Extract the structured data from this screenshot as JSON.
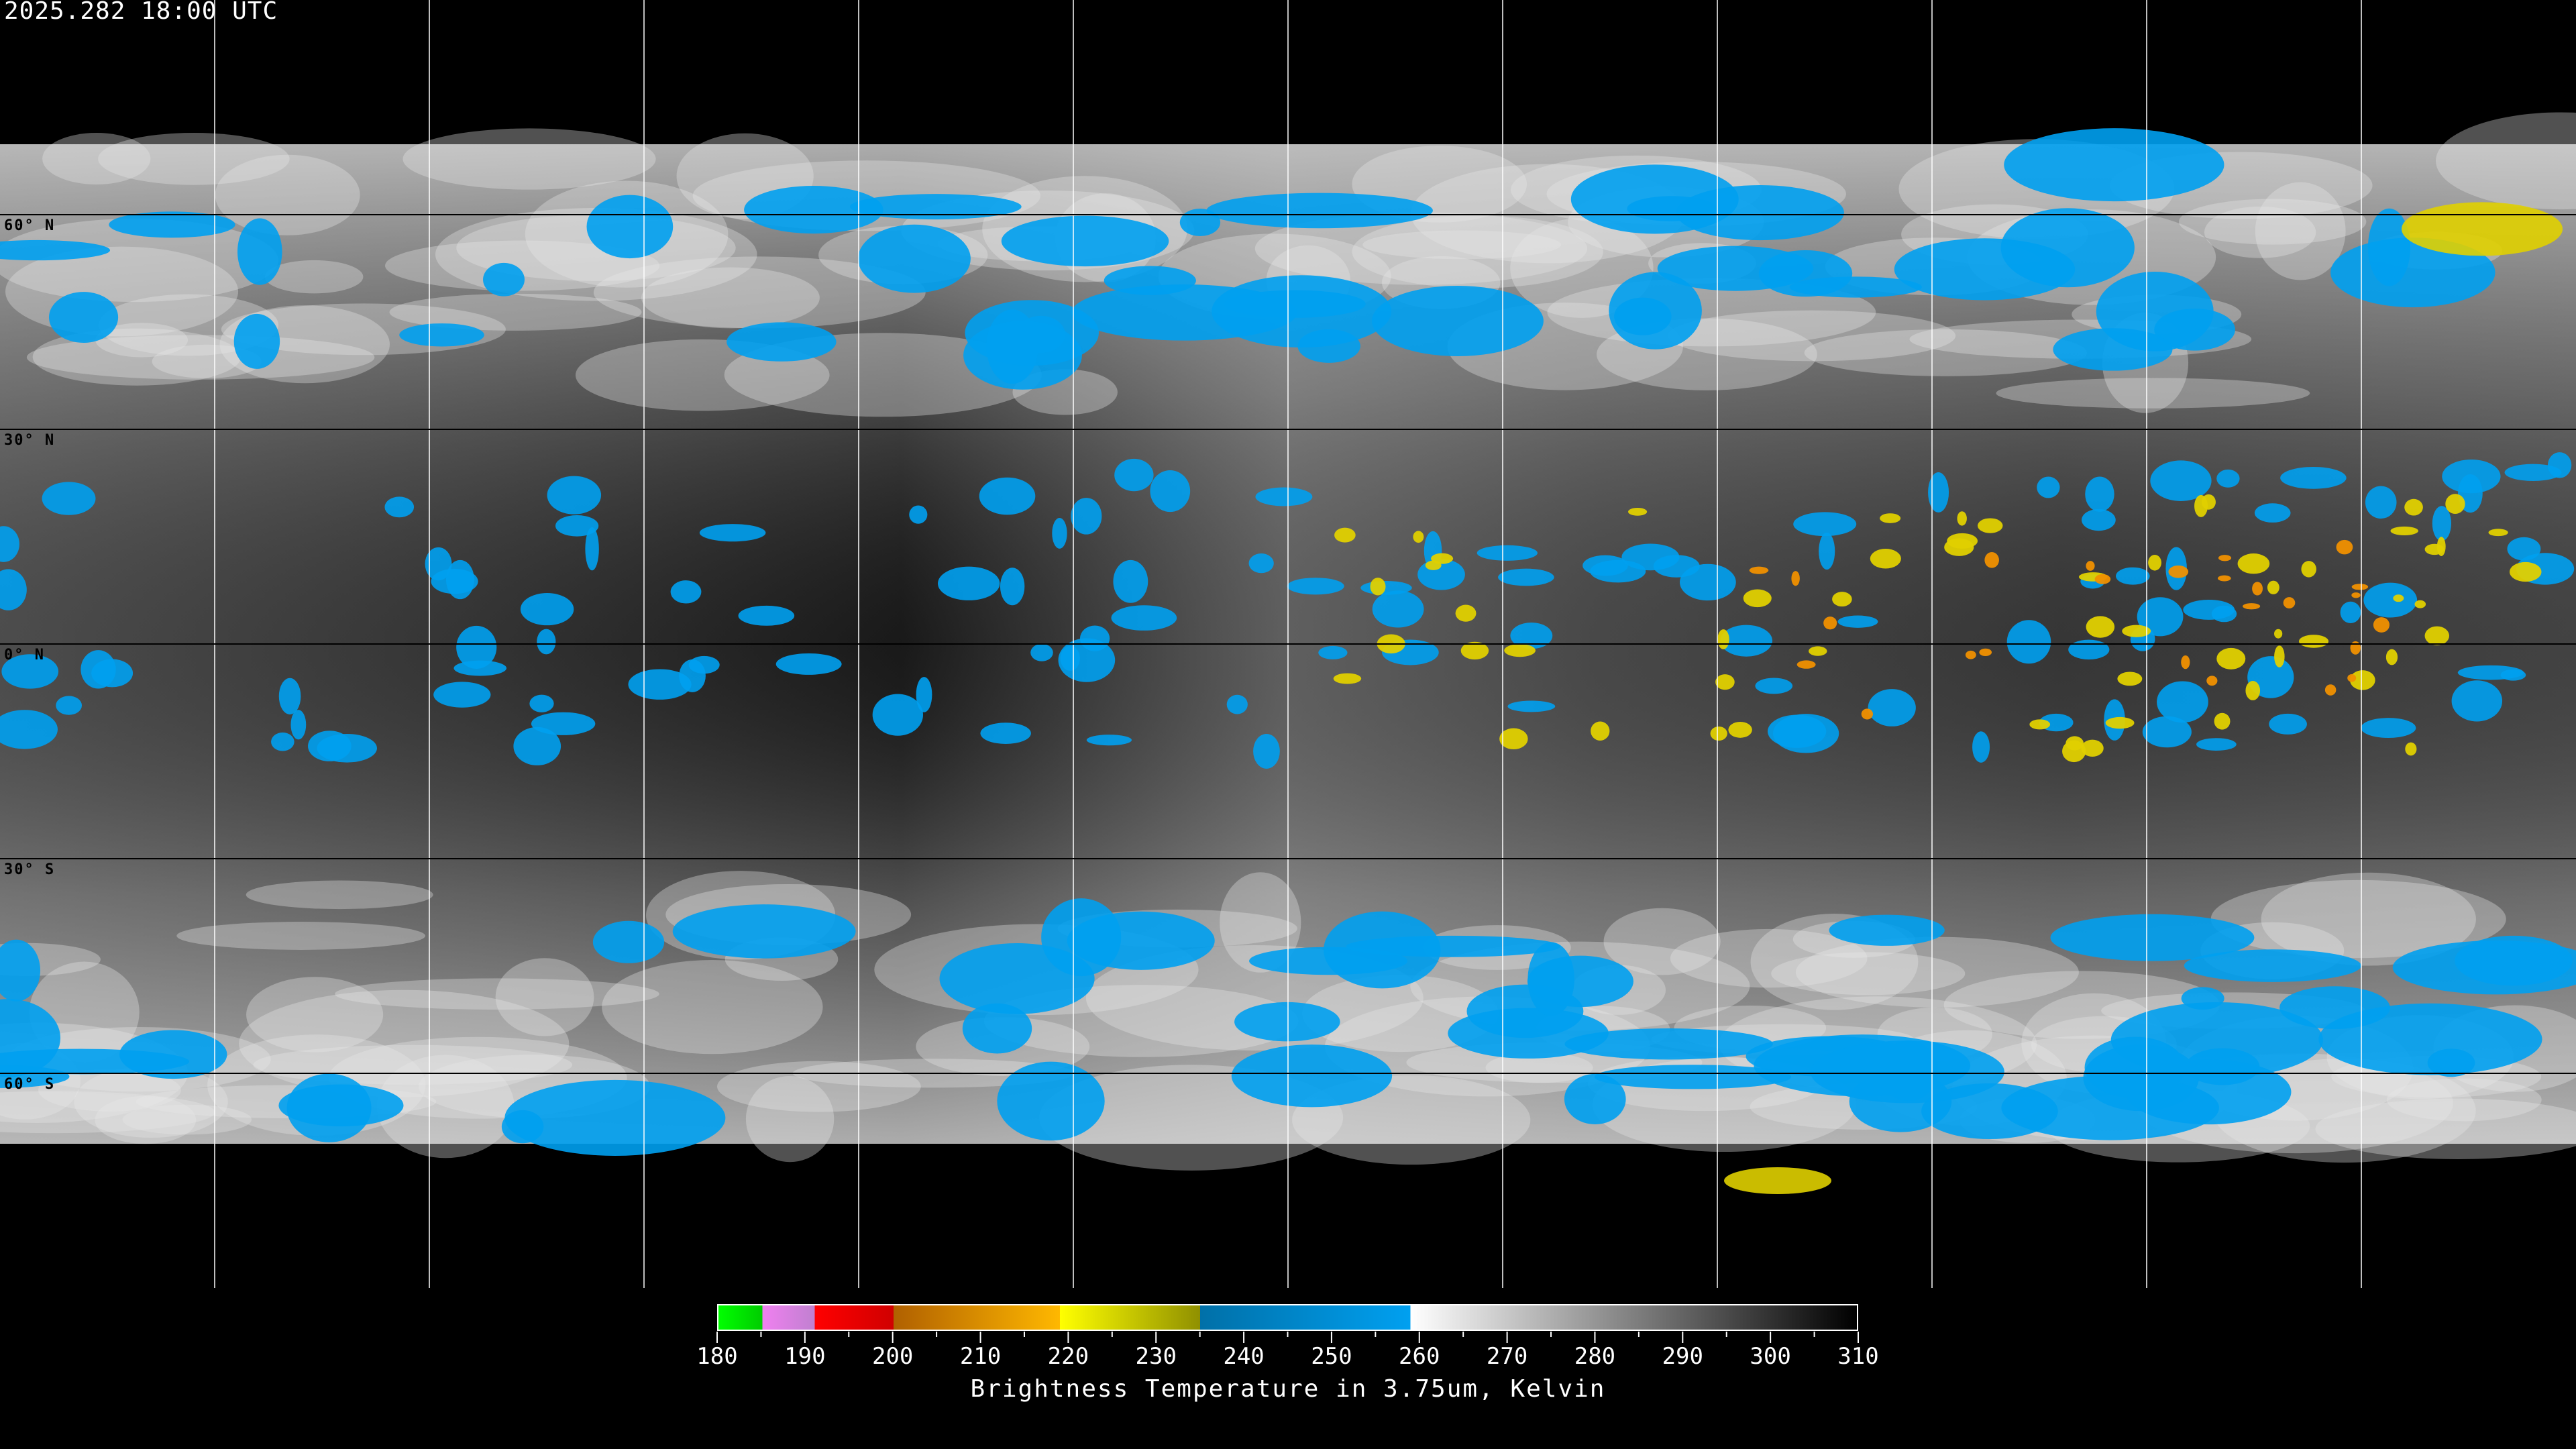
{
  "header": {
    "timestamp": "2025.282 18:00 UTC"
  },
  "map": {
    "projection": "equirectangular",
    "lat_labels": [
      "60° N",
      "30° N",
      "0° N",
      "30° S",
      "60° S"
    ],
    "lat_values": [
      60,
      30,
      0,
      -30,
      -60
    ],
    "grid_spacing_deg": 30
  },
  "colorbar": {
    "min": 180,
    "max": 310,
    "tick_labels": [
      "180",
      "190",
      "200",
      "210",
      "220",
      "230",
      "240",
      "250",
      "260",
      "270",
      "280",
      "290",
      "300",
      "310"
    ],
    "minor_tick_step": 5,
    "title": "Brightness Temperature in 3.75um, Kelvin",
    "segments": [
      {
        "from": 180,
        "to": 185,
        "colors": [
          "#00ff00",
          "#00cc00"
        ]
      },
      {
        "from": 185,
        "to": 191,
        "colors": [
          "#f080f0",
          "#c080d0"
        ]
      },
      {
        "from": 191,
        "to": 200,
        "colors": [
          "#ff0000",
          "#d00000"
        ]
      },
      {
        "from": 200,
        "to": 219,
        "colors": [
          "#b06000",
          "#ffb800"
        ]
      },
      {
        "from": 219,
        "to": 235,
        "colors": [
          "#ffff00",
          "#909000"
        ]
      },
      {
        "from": 235,
        "to": 259,
        "colors": [
          "#0070a8",
          "#00a0f0"
        ]
      },
      {
        "from": 259,
        "to": 310,
        "colors": [
          "#ffffff",
          "#000000"
        ]
      }
    ]
  }
}
